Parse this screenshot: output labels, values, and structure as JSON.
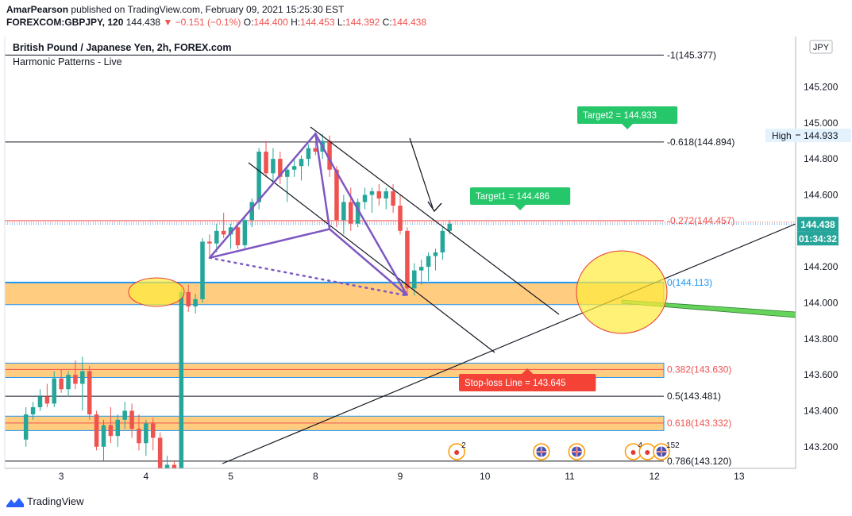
{
  "header": {
    "publisher": "AmarPearson",
    "published_text": "published on TradingView.com, February 09, 2021 15:25:30 EST",
    "symbol": "FOREXCOM:GBPJPY, 120",
    "last": "144.438",
    "change": "▼ −0.151 (−0.1%)",
    "o_label": "O:",
    "o_value": "144.400",
    "h_label": "H:",
    "h_value": "144.453",
    "l_label": "L:",
    "l_value": "144.392",
    "c_label": "C:",
    "c_value": "144.438"
  },
  "chart_title": "British Pound / Japanese Yen, 2h, FOREX.com",
  "study_title": "Harmonic Patterns - Live",
  "footer": {
    "brand": "TradingView"
  },
  "colors": {
    "up": "#26a69a",
    "down": "#ef5350",
    "pattern": "#7e57c2",
    "zone": "#ffcc80",
    "zone_border": "#2196f3",
    "label_green": "#26c76a",
    "label_red": "#f44336"
  },
  "chart_data": {
    "type": "candlestick",
    "currency": "JPY",
    "ylim": [
      143.08,
      145.48
    ],
    "y_ticks": [
      "145.200",
      "145.000",
      "144.800",
      "144.600",
      "144.400",
      "144.200",
      "144.000",
      "143.800",
      "143.600",
      "143.400",
      "143.200"
    ],
    "y_tick_values": [
      145.2,
      145.0,
      144.8,
      144.6,
      144.4,
      144.2,
      144.0,
      143.8,
      143.6,
      143.4,
      143.2
    ],
    "x_ticks": [
      "3",
      "4",
      "5",
      "8",
      "9",
      "10",
      "11",
      "12",
      "13"
    ],
    "x_tick_index": [
      5,
      17,
      29,
      41,
      53,
      65,
      77,
      89,
      101
    ],
    "x_range": [
      -3,
      109
    ],
    "price_label": "144.438",
    "price_value": 144.438,
    "countdown": "01:34:32",
    "high_label": "High",
    "high_value_text": "144.933",
    "high_value": 144.933,
    "fib_levels": [
      {
        "text": "-1(145.377)",
        "value": 145.377,
        "color": "#131722"
      },
      {
        "text": "-0.618(144.894)",
        "value": 144.894,
        "color": "#131722"
      },
      {
        "text": "-0.272(144.457)",
        "value": 144.457,
        "color": "#ef5350"
      },
      {
        "text": "0(144.113)",
        "value": 144.113,
        "color": "#2196f3"
      },
      {
        "text": "0.382(143.630)",
        "value": 143.63,
        "color": "#ef5350"
      },
      {
        "text": "0.5(143.481)",
        "value": 143.481,
        "color": "#131722"
      },
      {
        "text": "0.618(143.332)",
        "value": 143.332,
        "color": "#ef5350"
      },
      {
        "text": "0.786(143.120)",
        "value": 143.12,
        "color": "#131722"
      }
    ],
    "zones": [
      {
        "top": 144.113,
        "bottom": 143.99
      },
      {
        "top": 143.665,
        "bottom": 143.585
      },
      {
        "top": 143.37,
        "bottom": 143.29
      }
    ],
    "targets": [
      {
        "text": "Target2 = 144.933",
        "value": 144.933,
        "kind": "green"
      },
      {
        "text": "Target1 = 144.486",
        "value": 144.486,
        "kind": "green"
      },
      {
        "text": "Stop-loss Line = 143.645",
        "value": 143.645,
        "kind": "red"
      }
    ],
    "event_markers": [
      {
        "x_index": 61,
        "count": "2",
        "kind": "dot"
      },
      {
        "x_index": 73,
        "count": "",
        "kind": "flag"
      },
      {
        "x_index": 78,
        "count": "",
        "kind": "flag"
      },
      {
        "x_index": 86,
        "count": "4",
        "kind": "dot"
      },
      {
        "x_index": 88,
        "count": "",
        "kind": "dot"
      },
      {
        "x_index": 90,
        "count": "152",
        "kind": "flag"
      }
    ],
    "pattern_points": [
      {
        "x_index": 26,
        "value": 144.25
      },
      {
        "x_index": 41,
        "value": 144.94
      },
      {
        "x_index": 43.5,
        "value": 144.76
      },
      {
        "x_index": 54,
        "value": 144.04
      }
    ],
    "pattern_hub": {
      "x_index": 43,
      "value": 144.41
    },
    "candles": [
      {
        "o": 143.24,
        "h": 143.42,
        "l": 143.2,
        "c": 143.38
      },
      {
        "o": 143.38,
        "h": 143.45,
        "l": 143.35,
        "c": 143.42
      },
      {
        "o": 143.42,
        "h": 143.52,
        "l": 143.4,
        "c": 143.48
      },
      {
        "o": 143.48,
        "h": 143.55,
        "l": 143.42,
        "c": 143.44
      },
      {
        "o": 143.44,
        "h": 143.62,
        "l": 143.42,
        "c": 143.58
      },
      {
        "o": 143.58,
        "h": 143.63,
        "l": 143.5,
        "c": 143.52
      },
      {
        "o": 143.52,
        "h": 143.62,
        "l": 143.48,
        "c": 143.6
      },
      {
        "o": 143.6,
        "h": 143.68,
        "l": 143.52,
        "c": 143.55
      },
      {
        "o": 143.55,
        "h": 143.7,
        "l": 143.4,
        "c": 143.62
      },
      {
        "o": 143.62,
        "h": 143.65,
        "l": 143.35,
        "c": 143.38
      },
      {
        "o": 143.38,
        "h": 143.4,
        "l": 143.18,
        "c": 143.2
      },
      {
        "o": 143.2,
        "h": 143.35,
        "l": 143.12,
        "c": 143.32
      },
      {
        "o": 143.32,
        "h": 143.42,
        "l": 143.22,
        "c": 143.26
      },
      {
        "o": 143.26,
        "h": 143.38,
        "l": 143.2,
        "c": 143.35
      },
      {
        "o": 143.35,
        "h": 143.45,
        "l": 143.3,
        "c": 143.4
      },
      {
        "o": 143.4,
        "h": 143.44,
        "l": 143.25,
        "c": 143.3
      },
      {
        "o": 143.3,
        "h": 143.38,
        "l": 143.18,
        "c": 143.22
      },
      {
        "o": 143.22,
        "h": 143.35,
        "l": 143.15,
        "c": 143.33
      },
      {
        "o": 143.33,
        "h": 143.36,
        "l": 143.18,
        "c": 143.25
      },
      {
        "o": 143.25,
        "h": 143.28,
        "l": 143.05,
        "c": 143.08
      },
      {
        "o": 143.08,
        "h": 143.15,
        "l": 143.0,
        "c": 143.1
      },
      {
        "o": 143.1,
        "h": 143.12,
        "l": 142.95,
        "c": 143.02
      },
      {
        "o": 143.02,
        "h": 144.08,
        "l": 142.9,
        "c": 144.06
      },
      {
        "o": 144.06,
        "h": 144.1,
        "l": 143.95,
        "c": 143.98
      },
      {
        "o": 143.98,
        "h": 144.05,
        "l": 143.94,
        "c": 144.02
      },
      {
        "o": 144.02,
        "h": 144.36,
        "l": 144.0,
        "c": 144.34
      },
      {
        "o": 144.34,
        "h": 144.38,
        "l": 144.26,
        "c": 144.33
      },
      {
        "o": 144.33,
        "h": 144.44,
        "l": 144.28,
        "c": 144.4
      },
      {
        "o": 144.4,
        "h": 144.5,
        "l": 144.36,
        "c": 144.38
      },
      {
        "o": 144.38,
        "h": 144.44,
        "l": 144.3,
        "c": 144.42
      },
      {
        "o": 144.42,
        "h": 144.45,
        "l": 144.3,
        "c": 144.32
      },
      {
        "o": 144.32,
        "h": 144.48,
        "l": 144.3,
        "c": 144.46
      },
      {
        "o": 144.46,
        "h": 144.58,
        "l": 144.42,
        "c": 144.56
      },
      {
        "o": 144.56,
        "h": 144.86,
        "l": 144.52,
        "c": 144.84
      },
      {
        "o": 144.84,
        "h": 144.9,
        "l": 144.7,
        "c": 144.72
      },
      {
        "o": 144.72,
        "h": 144.86,
        "l": 144.66,
        "c": 144.8
      },
      {
        "o": 144.8,
        "h": 144.84,
        "l": 144.66,
        "c": 144.7
      },
      {
        "o": 144.7,
        "h": 144.76,
        "l": 144.56,
        "c": 144.74
      },
      {
        "o": 144.74,
        "h": 144.8,
        "l": 144.7,
        "c": 144.76
      },
      {
        "o": 144.76,
        "h": 144.82,
        "l": 144.68,
        "c": 144.8
      },
      {
        "o": 144.8,
        "h": 144.88,
        "l": 144.76,
        "c": 144.86
      },
      {
        "o": 144.86,
        "h": 144.9,
        "l": 144.82,
        "c": 144.84
      },
      {
        "o": 144.84,
        "h": 144.94,
        "l": 144.8,
        "c": 144.9
      },
      {
        "o": 144.9,
        "h": 144.93,
        "l": 144.7,
        "c": 144.74
      },
      {
        "o": 144.74,
        "h": 144.76,
        "l": 144.42,
        "c": 144.46
      },
      {
        "o": 144.46,
        "h": 144.6,
        "l": 144.38,
        "c": 144.56
      },
      {
        "o": 144.56,
        "h": 144.64,
        "l": 144.4,
        "c": 144.44
      },
      {
        "o": 144.44,
        "h": 144.58,
        "l": 144.42,
        "c": 144.56
      },
      {
        "o": 144.56,
        "h": 144.64,
        "l": 144.52,
        "c": 144.6
      },
      {
        "o": 144.6,
        "h": 144.64,
        "l": 144.5,
        "c": 144.62
      },
      {
        "o": 144.62,
        "h": 144.66,
        "l": 144.54,
        "c": 144.58
      },
      {
        "o": 144.58,
        "h": 144.64,
        "l": 144.52,
        "c": 144.62
      },
      {
        "o": 144.62,
        "h": 144.66,
        "l": 144.5,
        "c": 144.54
      },
      {
        "o": 144.54,
        "h": 144.6,
        "l": 144.38,
        "c": 144.4
      },
      {
        "o": 144.4,
        "h": 144.42,
        "l": 144.04,
        "c": 144.08
      },
      {
        "o": 144.08,
        "h": 144.22,
        "l": 144.04,
        "c": 144.18
      },
      {
        "o": 144.18,
        "h": 144.24,
        "l": 144.1,
        "c": 144.2
      },
      {
        "o": 144.2,
        "h": 144.28,
        "l": 144.12,
        "c": 144.26
      },
      {
        "o": 144.26,
        "h": 144.3,
        "l": 144.18,
        "c": 144.28
      },
      {
        "o": 144.28,
        "h": 144.42,
        "l": 144.24,
        "c": 144.4
      },
      {
        "o": 144.4,
        "h": 144.46,
        "l": 144.38,
        "c": 144.44
      }
    ]
  }
}
